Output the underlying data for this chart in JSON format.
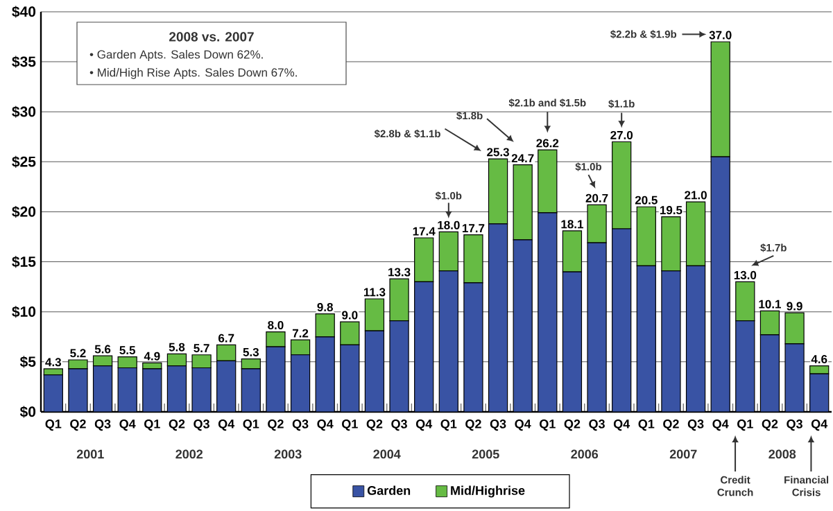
{
  "chart_data": {
    "type": "bar",
    "stacked": true,
    "categories": [
      "Q1",
      "Q2",
      "Q3",
      "Q4",
      "Q1",
      "Q2",
      "Q3",
      "Q4",
      "Q1",
      "Q2",
      "Q3",
      "Q4",
      "Q1",
      "Q2",
      "Q3",
      "Q4",
      "Q1",
      "Q2",
      "Q3",
      "Q4",
      "Q1",
      "Q2",
      "Q3",
      "Q4",
      "Q1",
      "Q2",
      "Q3",
      "Q4",
      "Q1",
      "Q2",
      "Q3",
      "Q4"
    ],
    "series": [
      {
        "name": "Garden",
        "color": "#3953a4",
        "values": [
          3.7,
          4.3,
          4.6,
          4.4,
          4.3,
          4.6,
          4.4,
          5.1,
          4.3,
          6.5,
          5.7,
          7.5,
          6.7,
          8.1,
          9.1,
          13.0,
          14.1,
          12.9,
          18.8,
          17.2,
          19.9,
          14.0,
          16.9,
          18.3,
          14.6,
          14.1,
          14.6,
          25.5,
          9.1,
          7.7,
          6.8,
          3.8
        ]
      },
      {
        "name": "Mid/Highrise",
        "color": "#66bb44",
        "values": [
          0.6,
          0.9,
          1.0,
          1.1,
          0.6,
          1.2,
          1.3,
          1.6,
          1.0,
          1.5,
          1.5,
          2.3,
          2.3,
          3.2,
          4.2,
          4.4,
          3.9,
          4.8,
          6.5,
          7.5,
          6.3,
          4.1,
          3.8,
          8.7,
          5.9,
          5.4,
          6.4,
          11.5,
          3.9,
          2.4,
          3.1,
          0.8
        ]
      }
    ],
    "totals": [
      "4.3",
      "5.2",
      "5.6",
      "5.5",
      "4.9",
      "5.8",
      "5.7",
      "6.7",
      "5.3",
      "8.0",
      "7.2",
      "9.8",
      "9.0",
      "11.3",
      "13.3",
      "17.4",
      "18.0",
      "17.7",
      "25.3",
      "24.7",
      "26.2",
      "18.1",
      "20.7",
      "27.0",
      "20.5",
      "19.5",
      "21.0",
      "37.0",
      "13.0",
      "10.1",
      "9.9",
      "4.6"
    ],
    "ylim": [
      0,
      40
    ],
    "yticks": [
      {
        "value": 0,
        "label": "$0"
      },
      {
        "value": 5,
        "label": "$5"
      },
      {
        "value": 10,
        "label": "$10"
      },
      {
        "value": 15,
        "label": "$15"
      },
      {
        "value": 20,
        "label": "$20"
      },
      {
        "value": 25,
        "label": "$25"
      },
      {
        "value": 30,
        "label": "$30"
      },
      {
        "value": 35,
        "label": "$35"
      },
      {
        "value": 40,
        "label": "$40"
      }
    ],
    "grid": "y",
    "legend": "bottom",
    "annotations": [
      "2001",
      "2002",
      "2003",
      "2004",
      "2005",
      "2006",
      "2007",
      "2008",
      "2008 vs. 2007",
      "• Garden Apts. Sales Down 62%.",
      "• Mid/High Rise Apts. Sales Down 67%.",
      "$1.0b",
      "$2.8b & $1.1b",
      "$1.8b",
      "$2.1b and $1.5b",
      "$1.1b",
      "$1.0b",
      "$2.2b & $1.9b",
      "$1.7b",
      "Credit Crunch",
      "Financial Crisis"
    ]
  }
}
